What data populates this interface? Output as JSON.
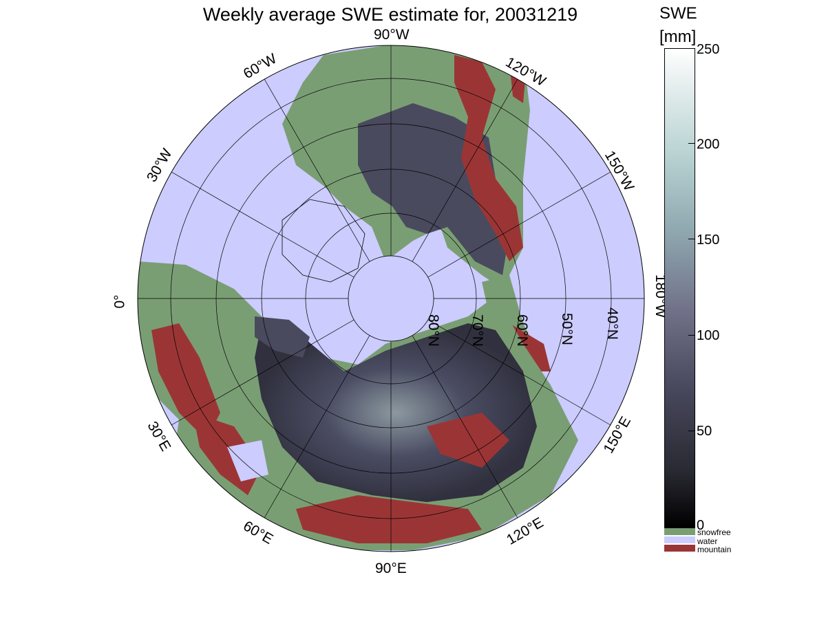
{
  "title": "Weekly average SWE estimate for, 20031219",
  "colorbar": {
    "title_line1": "SWE",
    "title_line2": "[mm]",
    "ticks": [
      "250",
      "200",
      "150",
      "100",
      "50",
      "0"
    ],
    "range": [
      0,
      250
    ]
  },
  "legend": [
    {
      "label": "snowfree",
      "color": "#7a9e74"
    },
    {
      "label": "water",
      "color": "#ccccff"
    },
    {
      "label": "mountain",
      "color": "#9b3535"
    }
  ],
  "map": {
    "projection": "north-polar-stereographic",
    "ocean_color": "#ccccff",
    "longitude_labels": [
      "90°W",
      "60°W",
      "120°W",
      "30°W",
      "150°W",
      "0°",
      "180°W",
      "30°E",
      "150°E",
      "60°E",
      "120°E",
      "90°E"
    ],
    "latitude_labels": [
      "80°N",
      "70°N",
      "60°N",
      "50°N",
      "40°N"
    ]
  }
}
